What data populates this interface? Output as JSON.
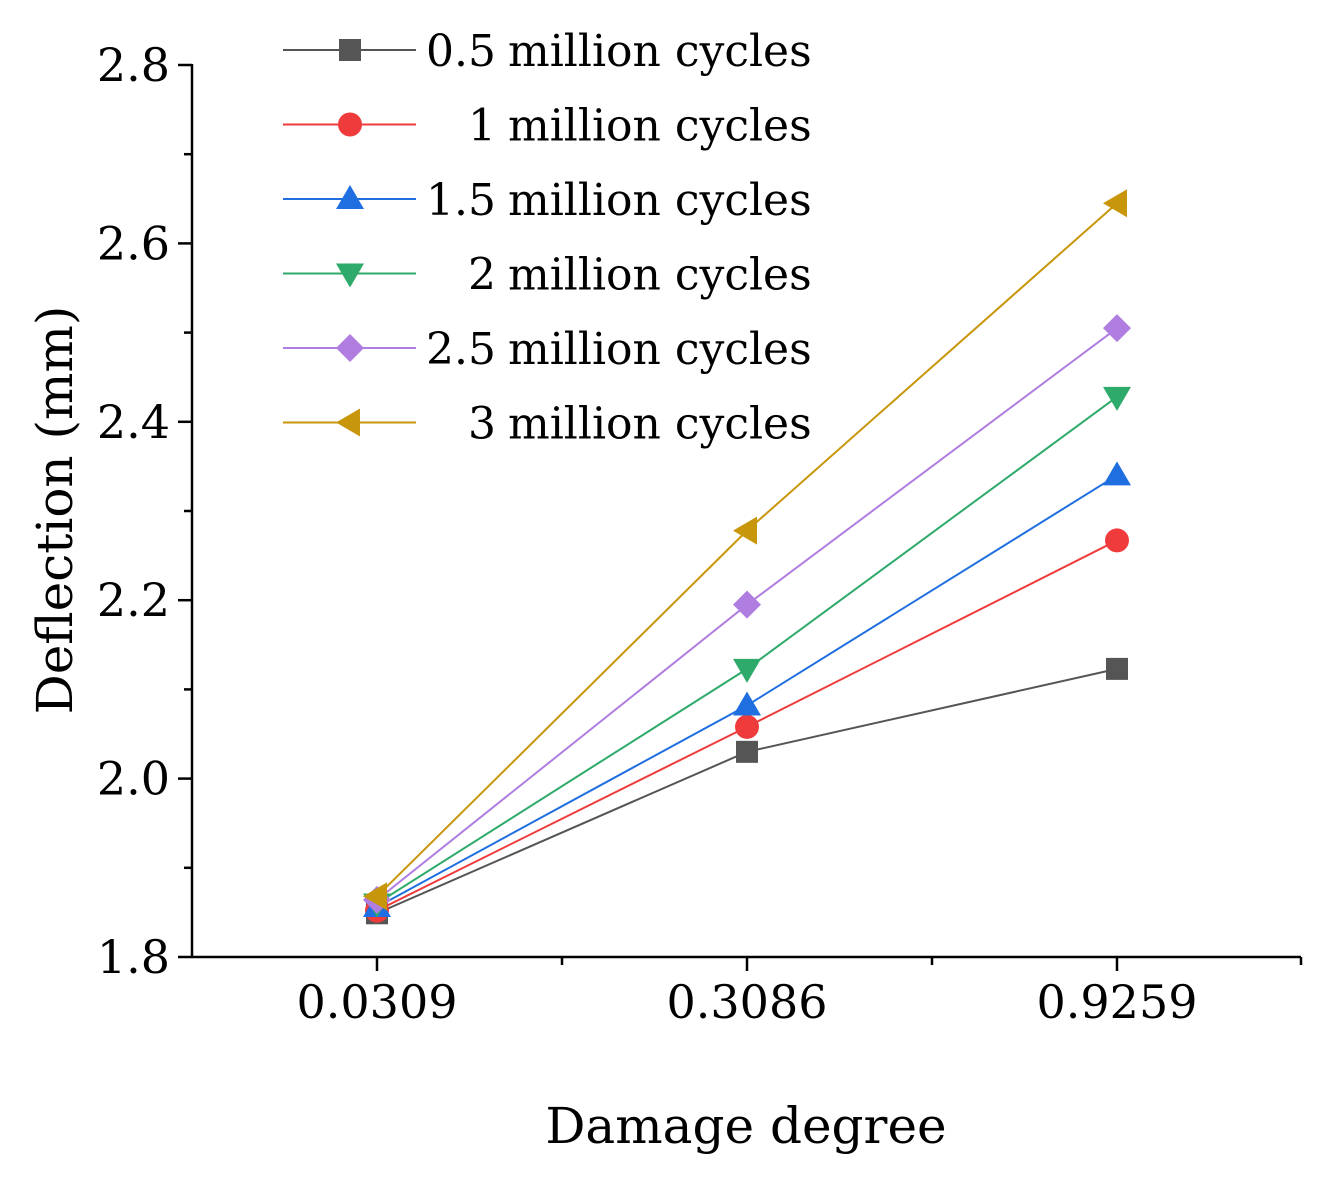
{
  "chart_data": {
    "type": "line",
    "title": "",
    "xlabel": "Damage degree",
    "ylabel": "Deflection (mm)",
    "categories": [
      "0.0309",
      "0.3086",
      "0.9259"
    ],
    "ylim": [
      1.8,
      2.8
    ],
    "yticks": [
      "1.8",
      "2.0",
      "2.2",
      "2.4",
      "2.6",
      "2.8"
    ],
    "legend_position": "top-left",
    "series": [
      {
        "name": "0.5 million  cycles",
        "label_num": "0.5",
        "label_text": "million  cycles",
        "color": "#555555",
        "marker": "square",
        "values": [
          1.849,
          2.03,
          2.123
        ]
      },
      {
        "name": "1  million  cycles",
        "label_num": "1",
        "label_text": "million  cycles",
        "color": "#ef3b3b",
        "marker": "circle",
        "values": [
          1.852,
          2.058,
          2.267
        ]
      },
      {
        "name": "1.5 million  cycles",
        "label_num": "1.5",
        "label_text": "million  cycles",
        "color": "#1f6fe0",
        "marker": "triangle-up",
        "values": [
          1.856,
          2.082,
          2.34
        ]
      },
      {
        "name": "2  million  cycles",
        "label_num": "2",
        "label_text": "million  cycles",
        "color": "#2eaa6a",
        "marker": "triangle-down",
        "values": [
          1.86,
          2.123,
          2.428
        ]
      },
      {
        "name": "2.5 million  cycles",
        "label_num": "2.5",
        "label_text": "million  cycles",
        "color": "#b07de0",
        "marker": "diamond",
        "values": [
          1.864,
          2.195,
          2.505
        ]
      },
      {
        "name": "3  million  cycles",
        "label_num": "3",
        "label_text": "million  cycles",
        "color": "#c8960a",
        "marker": "triangle-left",
        "values": [
          1.868,
          2.278,
          2.645
        ]
      }
    ]
  }
}
